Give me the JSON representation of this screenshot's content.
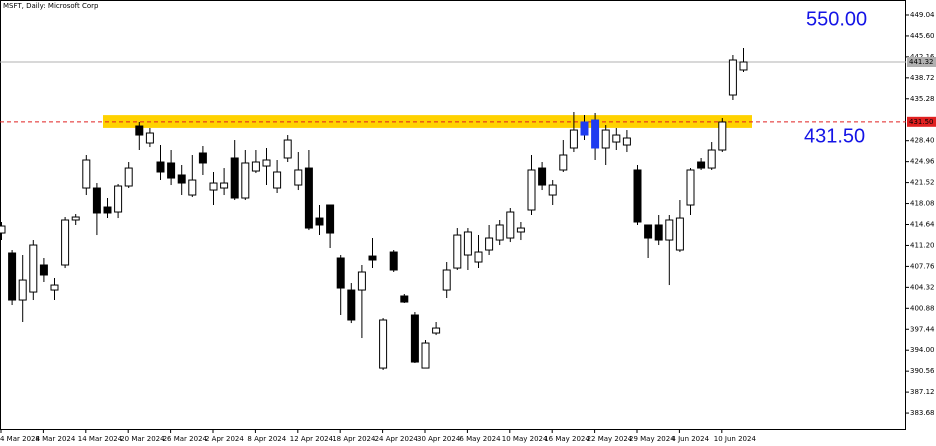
{
  "chart_data": {
    "type": "candlestick",
    "title": "MSFT, Daily:  Microsoft Corp",
    "categories": [
      "4 Mar 2024",
      null,
      null,
      null,
      "8 Mar 2024",
      null,
      null,
      null,
      "14 Mar 2024",
      null,
      null,
      null,
      "20 Mar 2024",
      null,
      null,
      null,
      "26 Mar 2024",
      null,
      null,
      null,
      "2 Apr 2024",
      null,
      null,
      null,
      "8 Apr 2024",
      null,
      null,
      null,
      "12 Apr 2024",
      null,
      null,
      null,
      "18 Apr 2024",
      null,
      null,
      null,
      "24 Apr 2024",
      null,
      null,
      null,
      "30 Apr 2024",
      null,
      null,
      null,
      "6 May 2024",
      null,
      null,
      null,
      "10 May 2024",
      null,
      null,
      null,
      "16 May 2024",
      null,
      null,
      null,
      "22 May 2024",
      null,
      null,
      null,
      "29 May 2024",
      null,
      null,
      null,
      "4 Jun 2024",
      null,
      null,
      null,
      "10 Jun 2024",
      null,
      null
    ],
    "open": [
      413.24,
      409.96,
      402.24,
      403.55,
      407.99,
      403.88,
      407.99,
      415.38,
      420.63,
      420.63,
      417.51,
      416.69,
      420.96,
      430.81,
      428.02,
      424.9,
      424.74,
      422.77,
      419.48,
      426.38,
      420.3,
      420.63,
      425.56,
      418.99,
      423.42,
      424.24,
      420.63,
      425.56,
      421.12,
      423.91,
      415.7,
      417.84,
      409.14,
      403.88,
      403.88,
      409.46,
      391.07,
      410.12,
      402.9,
      399.78,
      391.07,
      396.82,
      403.88,
      407.49,
      409.63,
      408.48,
      410.45,
      412.09,
      412.42,
      413.41,
      417.02,
      423.91,
      419.48,
      423.59,
      427.2,
      431.47,
      431.8,
      427.2,
      428.18,
      427.69,
      423.59,
      414.56,
      414.56,
      412.09,
      410.45,
      417.84,
      424.9,
      423.91,
      426.87,
      435.9,
      440.01
    ],
    "high": [
      415.05,
      410.45,
      409.63,
      412.09,
      409.14,
      405.85,
      415.87,
      416.36,
      426.05,
      421.45,
      418.99,
      421.29,
      424.9,
      431.47,
      430.48,
      427.69,
      426.87,
      424.41,
      426.05,
      427.53,
      423.26,
      423.91,
      428.51,
      426.87,
      426.87,
      427.2,
      425.23,
      429.33,
      426.54,
      426.87,
      417.84,
      417.84,
      409.63,
      405.03,
      407.99,
      412.42,
      399.28,
      410.45,
      403.23,
      400.27,
      395.67,
      398.63,
      408.48,
      414.06,
      414.06,
      412.91,
      414.56,
      415.38,
      417.35,
      415.05,
      426.05,
      424.9,
      421.94,
      428.51,
      433.11,
      432.62,
      432.95,
      430.97,
      430.48,
      430.15,
      424.41,
      414.56,
      416.2,
      416.2,
      418.66,
      423.91,
      425.56,
      428.18,
      432.12,
      442.47,
      443.62
    ],
    "low": [
      412.09,
      401.42,
      398.63,
      402.24,
      405.2,
      402.24,
      407.49,
      414.56,
      419.48,
      412.91,
      415.7,
      415.7,
      420.63,
      426.87,
      427.36,
      421.94,
      421.12,
      419.48,
      419.15,
      422.77,
      417.84,
      419.48,
      418.66,
      418.66,
      423.09,
      421.12,
      419.81,
      424.9,
      420.3,
      413.73,
      412.91,
      410.78,
      399.78,
      398.46,
      396.0,
      407.49,
      390.75,
      406.84,
      401.75,
      391.9,
      391.07,
      396.49,
      402.57,
      407.17,
      407.17,
      407.49,
      409.63,
      411.27,
      411.76,
      412.09,
      416.2,
      420.3,
      417.84,
      423.26,
      426.54,
      428.51,
      425.23,
      424.41,
      426.87,
      426.54,
      414.56,
      409.14,
      411.27,
      404.7,
      410.12,
      416.2,
      423.59,
      423.59,
      426.54,
      435.08,
      439.68
    ],
    "close": [
      414.39,
      402.24,
      405.52,
      411.27,
      406.35,
      404.7,
      415.38,
      415.87,
      425.23,
      416.53,
      416.53,
      420.96,
      423.91,
      429.33,
      429.66,
      423.26,
      422.27,
      421.45,
      421.94,
      424.74,
      421.45,
      421.45,
      418.99,
      424.74,
      424.9,
      425.23,
      423.26,
      428.51,
      423.59,
      414.06,
      414.56,
      413.24,
      404.21,
      398.96,
      406.84,
      408.81,
      398.96,
      407.17,
      401.91,
      392.06,
      395.18,
      397.64,
      407.17,
      412.91,
      413.41,
      410.12,
      412.42,
      414.56,
      416.69,
      414.06,
      423.59,
      421.12,
      421.12,
      426.05,
      430.15,
      429.33,
      427.2,
      430.15,
      429.33,
      428.84,
      415.05,
      412.42,
      412.09,
      415.38,
      415.7,
      423.59,
      423.91,
      426.87,
      431.47,
      441.65,
      441.32
    ],
    "up_color": "#ffffff",
    "down_color": "#000000",
    "highlight_color": "#1f3cf0",
    "highlighted": [
      55,
      56
    ],
    "ylim": [
      380.9,
      451.5
    ],
    "yticks": [
      449.04,
      {
        "value": 445.6,
        "label": "445.60"
      },
      442.16,
      438.72,
      435.28,
      {
        "value": 428.4,
        "label": "428.40"
      },
      424.96,
      421.52,
      418.08,
      414.64,
      {
        "value": 411.2,
        "label": "411.20"
      },
      407.76,
      404.32,
      400.88,
      397.44,
      {
        "value": 394,
        "label": "394.00"
      },
      390.56,
      387.12,
      383.68
    ],
    "zone": {
      "low": 430.5,
      "high": 432.6,
      "color": "#ffd200"
    },
    "level": {
      "value": 431.5,
      "label": "431.50",
      "color": "#e02020"
    },
    "price_line": {
      "value": 441.32,
      "label": "441.32",
      "color": "#b0b0b0"
    },
    "annotations": [
      "550.00",
      "431.50"
    ]
  }
}
